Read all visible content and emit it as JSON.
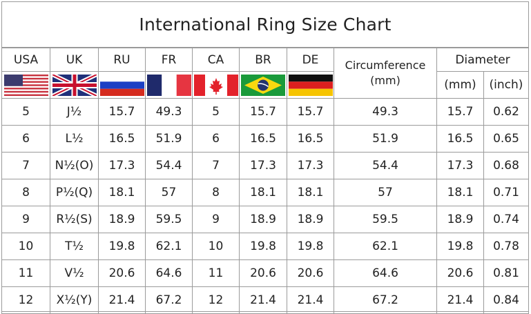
{
  "title": "International Ring Size Chart",
  "chart_data": {
    "type": "table",
    "title": "International Ring Size Chart",
    "columns": [
      "USA",
      "UK",
      "RU",
      "FR",
      "CA",
      "BR",
      "DE",
      "Circumference (mm)",
      "Diameter (mm)",
      "Diameter (inch)"
    ],
    "header": {
      "usa": "USA",
      "uk": "UK",
      "ru": "RU",
      "fr": "FR",
      "ca": "CA",
      "br": "BR",
      "de": "DE",
      "circumference": "Circumference",
      "circumference_unit": "(mm)",
      "diameter": "Diameter",
      "diameter_mm": "(mm)",
      "diameter_inch": "(inch)"
    },
    "flags": [
      "us-flag",
      "uk-flag",
      "russia-flag",
      "france-flag",
      "canada-flag",
      "brazil-flag",
      "germany-flag"
    ],
    "rows": [
      [
        "5",
        "J½",
        "15.7",
        "49.3",
        "5",
        "15.7",
        "15.7",
        "49.3",
        "15.7",
        "0.62"
      ],
      [
        "6",
        "L½",
        "16.5",
        "51.9",
        "6",
        "16.5",
        "16.5",
        "51.9",
        "16.5",
        "0.65"
      ],
      [
        "7",
        "N½(O)",
        "17.3",
        "54.4",
        "7",
        "17.3",
        "17.3",
        "54.4",
        "17.3",
        "0.68"
      ],
      [
        "8",
        "P½(Q)",
        "18.1",
        "57",
        "8",
        "18.1",
        "18.1",
        "57",
        "18.1",
        "0.71"
      ],
      [
        "9",
        "R½(S)",
        "18.9",
        "59.5",
        "9",
        "18.9",
        "18.9",
        "59.5",
        "18.9",
        "0.74"
      ],
      [
        "10",
        "T½",
        "19.8",
        "62.1",
        "10",
        "19.8",
        "19.8",
        "62.1",
        "19.8",
        "0.78"
      ],
      [
        "11",
        "V½",
        "20.6",
        "64.6",
        "11",
        "20.6",
        "20.6",
        "64.6",
        "20.6",
        "0.81"
      ],
      [
        "12",
        "X½(Y)",
        "21.4",
        "67.2",
        "12",
        "21.4",
        "21.4",
        "67.2",
        "21.4",
        "0.84"
      ]
    ]
  }
}
